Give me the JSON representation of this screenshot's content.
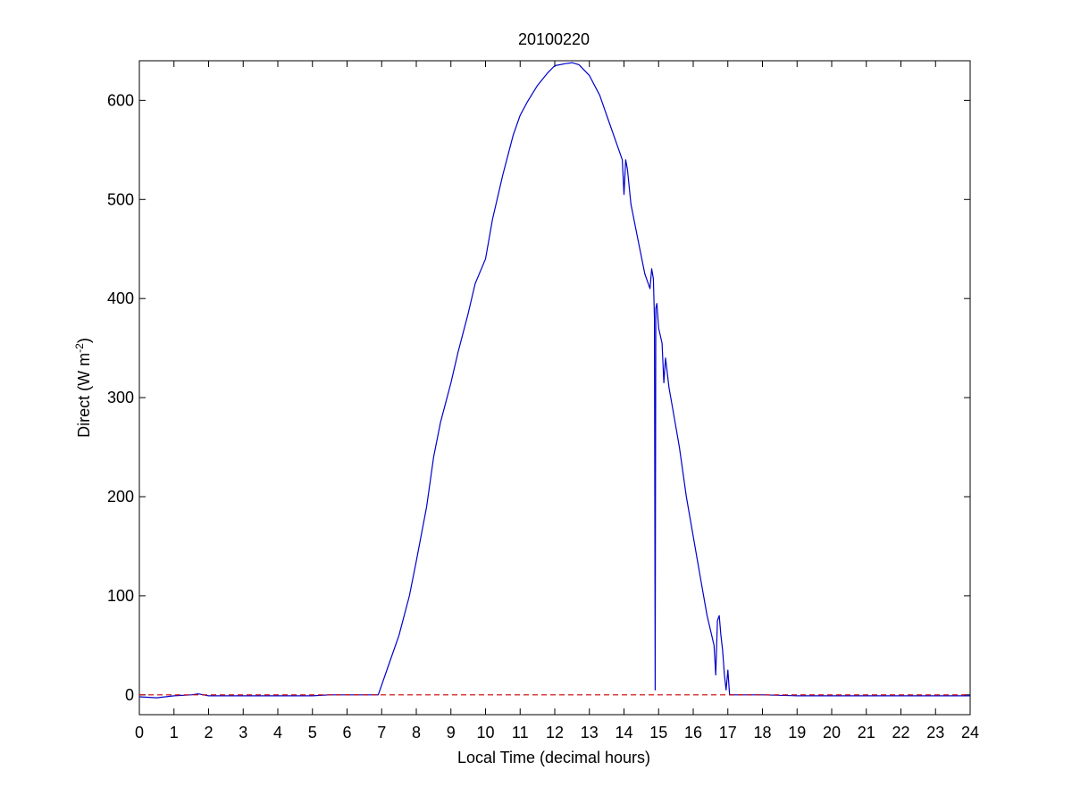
{
  "chart_data": {
    "type": "line",
    "title": "20100220",
    "xlabel": "Local Time (decimal hours)",
    "ylabel": {
      "prefix": "Direct (W m",
      "superscript": "-2",
      "suffix": ")"
    },
    "xlim": [
      0,
      24
    ],
    "ylim": [
      -20,
      640
    ],
    "xticks": [
      0,
      1,
      2,
      3,
      4,
      5,
      6,
      7,
      8,
      9,
      10,
      11,
      12,
      13,
      14,
      15,
      16,
      17,
      18,
      19,
      20,
      21,
      22,
      23,
      24
    ],
    "yticks": [
      0,
      100,
      200,
      300,
      400,
      500,
      600
    ],
    "grid": false,
    "series": [
      {
        "color": "#0000cc",
        "style": "solid",
        "x": [
          0,
          0.5,
          1,
          1.5,
          1.7,
          2,
          2.5,
          3,
          3.5,
          4,
          4.5,
          5,
          5.5,
          6,
          6.5,
          6.9,
          7.0,
          7.2,
          7.5,
          7.8,
          8.0,
          8.3,
          8.5,
          8.7,
          9.0,
          9.2,
          9.5,
          9.7,
          10.0,
          10.2,
          10.5,
          10.8,
          11.0,
          11.2,
          11.5,
          11.8,
          12.0,
          12.3,
          12.5,
          12.7,
          13.0,
          13.3,
          13.5,
          13.8,
          13.95,
          14.0,
          14.05,
          14.1,
          14.2,
          14.4,
          14.6,
          14.75,
          14.8,
          14.85,
          14.88,
          14.9,
          14.92,
          14.95,
          15.0,
          15.1,
          15.15,
          15.2,
          15.3,
          15.4,
          15.6,
          15.8,
          16.0,
          16.2,
          16.4,
          16.6,
          16.65,
          16.7,
          16.75,
          16.8,
          16.85,
          16.9,
          16.95,
          17.0,
          17.05,
          17.1,
          17.15,
          17.2,
          17.3,
          17.5,
          18,
          19,
          20,
          21,
          22,
          23,
          24
        ],
        "y": [
          -2,
          -3,
          -1,
          0,
          1,
          -1,
          -1,
          -1,
          -1,
          -1,
          -1,
          -1,
          0,
          0,
          0,
          0,
          10,
          30,
          60,
          100,
          135,
          190,
          240,
          275,
          315,
          345,
          385,
          415,
          440,
          480,
          525,
          565,
          585,
          598,
          615,
          628,
          635,
          637,
          638,
          636,
          625,
          605,
          585,
          555,
          540,
          505,
          540,
          530,
          495,
          460,
          425,
          410,
          430,
          420,
          380,
          5,
          390,
          395,
          370,
          355,
          315,
          340,
          310,
          290,
          250,
          200,
          160,
          120,
          80,
          50,
          20,
          75,
          80,
          60,
          45,
          20,
          5,
          25,
          0,
          0,
          0,
          0,
          0,
          0,
          0,
          -1,
          -1,
          -1,
          -1,
          -1,
          -1
        ]
      },
      {
        "color": "#cc0000",
        "style": "dashed",
        "x": [
          0,
          24
        ],
        "y": [
          0,
          0
        ]
      }
    ]
  }
}
